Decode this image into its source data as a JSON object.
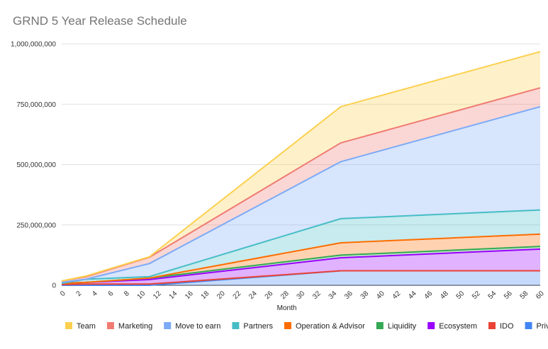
{
  "chart_data": {
    "type": "area",
    "stacked": true,
    "title": "GRND 5 Year Release Schedule",
    "xlabel": "Month",
    "ylabel": "",
    "xlim": [
      0,
      60
    ],
    "ylim": [
      0,
      1000000000
    ],
    "x_ticks": [
      0,
      2,
      4,
      6,
      8,
      10,
      12,
      14,
      16,
      18,
      20,
      22,
      24,
      26,
      28,
      30,
      32,
      34,
      36,
      38,
      40,
      42,
      44,
      46,
      48,
      50,
      52,
      54,
      56,
      58,
      60
    ],
    "y_ticks": [
      0,
      250000000,
      500000000,
      750000000,
      1000000000
    ],
    "y_tick_labels": [
      "0",
      "250,000,000",
      "500,000,000",
      "750,000,000",
      "1,000,000,000"
    ],
    "grid": true,
    "legend_position": "bottom",
    "x": [
      0,
      3,
      11,
      35,
      60
    ],
    "series": [
      {
        "name": "Private",
        "color": "#4285f4",
        "cumulative": [
          0,
          0,
          0,
          60000000,
          60000000
        ]
      },
      {
        "name": "IDO",
        "color": "#ea4335",
        "cumulative": [
          3000000,
          5000000,
          5000000,
          60000000,
          60000000
        ]
      },
      {
        "name": "Ecosystem",
        "color": "#9900ff",
        "cumulative": [
          8000000,
          12000000,
          24000000,
          114000000,
          150000000
        ]
      },
      {
        "name": "Liquidity",
        "color": "#34a853",
        "cumulative": [
          8000000,
          12000000,
          30000000,
          125000000,
          161000000
        ]
      },
      {
        "name": "Operation & Advisor",
        "color": "#ff6d01",
        "cumulative": [
          8000000,
          12000000,
          30000000,
          176000000,
          212000000
        ]
      },
      {
        "name": "Partners",
        "color": "#46bdc6",
        "cumulative": [
          8000000,
          25000000,
          36000000,
          276000000,
          312000000
        ]
      },
      {
        "name": "Move to earn",
        "color": "#7baaf7",
        "cumulative": [
          12000000,
          25000000,
          90000000,
          512000000,
          740000000
        ]
      },
      {
        "name": "Marketing",
        "color": "#f07b72",
        "cumulative": [
          18000000,
          35000000,
          116000000,
          590000000,
          818000000
        ]
      },
      {
        "name": "Team",
        "color": "#fcd04f",
        "cumulative": [
          18000000,
          38000000,
          118000000,
          740000000,
          968000000
        ]
      }
    ],
    "legend_order": [
      "Team",
      "Marketing",
      "Move to earn",
      "Partners",
      "Operation & Advisor",
      "Liquidity",
      "Ecosystem",
      "IDO",
      "Private"
    ]
  }
}
